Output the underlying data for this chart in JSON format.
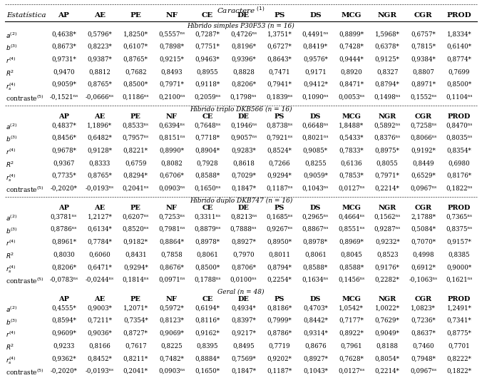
{
  "title_line1": "Caractere",
  "title_superscript": "(1)",
  "col_header": [
    "AP",
    "AE",
    "PE",
    "NF",
    "CE",
    "DE",
    "PS",
    "DS",
    "MCG",
    "NGR",
    "CGR",
    "PROD"
  ],
  "row_labels": [
    "a⁽²⁾",
    "b⁽³⁾",
    "r⁽⁴⁾",
    "R²",
    "r_s⁽⁴⁾",
    "contraste⁽⁵⁾"
  ],
  "row_labels_tex": [
    "$a^{(2)}$",
    "$b^{(3)}$",
    "$r^{(4)}$",
    "$R^2$",
    "$r_s^{(4)}$",
    "contraste$^{(5)}$"
  ],
  "sections": [
    {
      "title": "Híbrido simples P30F53 (n = 16)",
      "show_col_header": false,
      "rows": [
        [
          "0,4638*",
          "0,5796*",
          "1,8250*",
          "0,5557ⁿˢ",
          "0,7287*",
          "0,4726ⁿˢ",
          "1,3751*",
          "0,4491ⁿˢ",
          "0,8899*",
          "1,5968*",
          "0,6757*",
          "1,8334*"
        ],
        [
          "0,8673*",
          "0,8223*",
          "0,6107*",
          "0,7898*",
          "0,7751*",
          "0,8196*",
          "0,6727*",
          "0,8419*",
          "0,7428*",
          "0,6378*",
          "0,7815*",
          "0,6140*"
        ],
        [
          "0,9731*",
          "0,9387*",
          "0,8765*",
          "0,9215*",
          "0,9463*",
          "0,9396*",
          "0,8643*",
          "0,9576*",
          "0,9444*",
          "0,9125*",
          "0,9384*",
          "0,8774*"
        ],
        [
          "0,9470",
          "0,8812",
          "0,7682",
          "0,8493",
          "0,8955",
          "0,8828",
          "0,7471",
          "0,9171",
          "0,8920",
          "0,8327",
          "0,8807",
          "0,7699"
        ],
        [
          "0,9059*",
          "0,8765*",
          "0,8500*",
          "0,7971*",
          "0,9118*",
          "0,8206*",
          "0,7941*",
          "0,9412*",
          "0,8471*",
          "0,8794*",
          "0,8971*",
          "0,8500*"
        ],
        [
          "-0,1521ⁿˢ",
          "-0,0666ⁿˢ",
          "0,1186ⁿˢ",
          "0,2100ⁿˢ",
          "0,2059ⁿˢ",
          "0,1798ⁿˢ",
          "0,1839ⁿˢ",
          "0,1090ⁿˢ",
          "0,0053ⁿˢ",
          "0,1498ⁿˢ",
          "0,1552ⁿˢ",
          "0,1104ⁿˢ"
        ]
      ]
    },
    {
      "title": "Híbrido triplo DKB566 (n = 16)",
      "show_col_header": true,
      "rows": [
        [
          "0,4837*",
          "1,1896*",
          "0,8533ⁿˢ",
          "0,6394ⁿˢ",
          "0,7648ⁿˢ",
          "0,1946ⁿˢ",
          "0,8738ⁿˢ",
          "0,6648ⁿˢ",
          "1,8488*",
          "0,5892ⁿˢ",
          "0,7258ⁿˢ",
          "0,8470ⁿˢ"
        ],
        [
          "0,8456*",
          "0,6482*",
          "0,7957ⁿˢ",
          "0,8151ⁿˢ",
          "0,7718*",
          "0,9057ⁿˢ",
          "0,7921ⁿˢ",
          "0,8021ⁿˢ",
          "0,5433*",
          "0,8376ⁿˢ",
          "0,8066ⁿˢ",
          "0,8035ⁿˢ"
        ],
        [
          "0,9678*",
          "0,9128*",
          "0,8221*",
          "0,8990*",
          "0,8904*",
          "0,9283*",
          "0,8524*",
          "0,9085*",
          "0,7833*",
          "0,8975*",
          "0,9192*",
          "0,8354*"
        ],
        [
          "0,9367",
          "0,8333",
          "0,6759",
          "0,8082",
          "0,7928",
          "0,8618",
          "0,7266",
          "0,8255",
          "0,6136",
          "0,8055",
          "0,8449",
          "0,6980"
        ],
        [
          "0,7735*",
          "0,8765*",
          "0,8294*",
          "0,6706*",
          "0,8588*",
          "0,7029*",
          "0,9294*",
          "0,9059*",
          "0,7853*",
          "0,7971*",
          "0,6529*",
          "0,8176*"
        ],
        [
          "-0,2020*",
          "-0,0193ⁿˢ",
          "0,2041ⁿˢ",
          "0,0903ⁿˢ",
          "0,1650ⁿˢ",
          "0,1847*",
          "0,1187ⁿˢ",
          "0,1043ⁿˢ",
          "0,0127ⁿˢ",
          "0,2214*",
          "0,0967ⁿˢ",
          "0,1822ⁿˢ"
        ]
      ]
    },
    {
      "title": "Híbrido duplo DKB747 (n = 16)",
      "show_col_header": true,
      "rows": [
        [
          "0,3781ⁿˢ",
          "1,2127*",
          "0,6207ⁿˢ",
          "0,7253ⁿˢ",
          "0,3311ⁿˢ",
          "0,8213ⁿˢ",
          "0,1685ⁿˢ",
          "0,2965ⁿˢ",
          "0,4664ⁿˢ",
          "0,1562ⁿˢ",
          "2,1788*",
          "0,7365ⁿˢ"
        ],
        [
          "0,8786ⁿˢ",
          "0,6134*",
          "0,8520ⁿˢ",
          "0,7981ⁿˢ",
          "0,8879ⁿˢ",
          "0,7888ⁿˢ",
          "0,9267ⁿˢ",
          "0,8867ⁿˢ",
          "0,8551ⁿˢ",
          "0,9287ⁿˢ",
          "0,5084*",
          "0,8375ⁿˢ"
        ],
        [
          "0,8961*",
          "0,7784*",
          "0,9182*",
          "0,8864*",
          "0,8978*",
          "0,8927*",
          "0,8950*",
          "0,8978*",
          "0,8969*",
          "0,9232*",
          "0,7070*",
          "0,9157*"
        ],
        [
          "0,8030",
          "0,6060",
          "0,8431",
          "0,7858",
          "0,8061",
          "0,7970",
          "0,8011",
          "0,8061",
          "0,8045",
          "0,8523",
          "0,4998",
          "0,8385"
        ],
        [
          "0,8206*",
          "0,6471*",
          "0,9294*",
          "0,8676*",
          "0,8500*",
          "0,8706*",
          "0,8794*",
          "0,8588*",
          "0,8588*",
          "0,9176*",
          "0,6912*",
          "0,9000*"
        ],
        [
          "-0,0783ⁿˢ",
          "-0,0244ⁿˢ",
          "0,1814ⁿˢ",
          "0,0971ⁿˢ",
          "0,1788ⁿˢ",
          "0,0100ⁿˢ",
          "0,2254*",
          "0,1634ⁿˢ",
          "0,1456ⁿˢ",
          "0,2282*",
          "-0,1063ⁿˢ",
          "0,1621ⁿˢ"
        ]
      ]
    },
    {
      "title": "Geral (n = 48)",
      "show_col_header": true,
      "rows": [
        [
          "0,4555*",
          "0,9003*",
          "1,2071*",
          "0,5972*",
          "0,6194*",
          "0,4934*",
          "0,8186*",
          "0,4703*",
          "1,0542*",
          "1,0022*",
          "1,0823*",
          "1,2491*"
        ],
        [
          "0,8594*",
          "0,7211*",
          "0,7354*",
          "0,8123*",
          "0,8116*",
          "0,8397*",
          "0,7999*",
          "0,8442*",
          "0,7177*",
          "0,7629*",
          "0,7236*",
          "0,7341*"
        ],
        [
          "0,9609*",
          "0,9036*",
          "0,8727*",
          "0,9069*",
          "0,9162*",
          "0,9217*",
          "0,8786*",
          "0,9314*",
          "0,8922*",
          "0,9049*",
          "0,8637*",
          "0,8775*"
        ],
        [
          "0,9233",
          "0,8166",
          "0,7617",
          "0,8225",
          "0,8395",
          "0,8495",
          "0,7719",
          "0,8676",
          "0,7961",
          "0,8188",
          "0,7460",
          "0,7701"
        ],
        [
          "0,9362*",
          "0,8452*",
          "0,8211*",
          "0,7482*",
          "0,8884*",
          "0,7569*",
          "0,9202*",
          "0,8927*",
          "0,7628*",
          "0,8054*",
          "0,7948*",
          "0,8222*"
        ],
        [
          "-0,2020*",
          "-0,0193ⁿˢ",
          "0,2041*",
          "0,0903ⁿˢ",
          "0,1650*",
          "0,1847*",
          "0,1187*",
          "0,1043*",
          "0,0127ⁿˢ",
          "0,2214*",
          "0,0967ⁿˢ",
          "0,1822*"
        ]
      ]
    }
  ],
  "estatistica_label": "Estatística",
  "caractere_label": "Caractere",
  "footnote_sup": "(1)",
  "bg_color": "#ffffff",
  "font_size": 6.5,
  "header_font_size": 7.5,
  "section_font_size": 6.5
}
